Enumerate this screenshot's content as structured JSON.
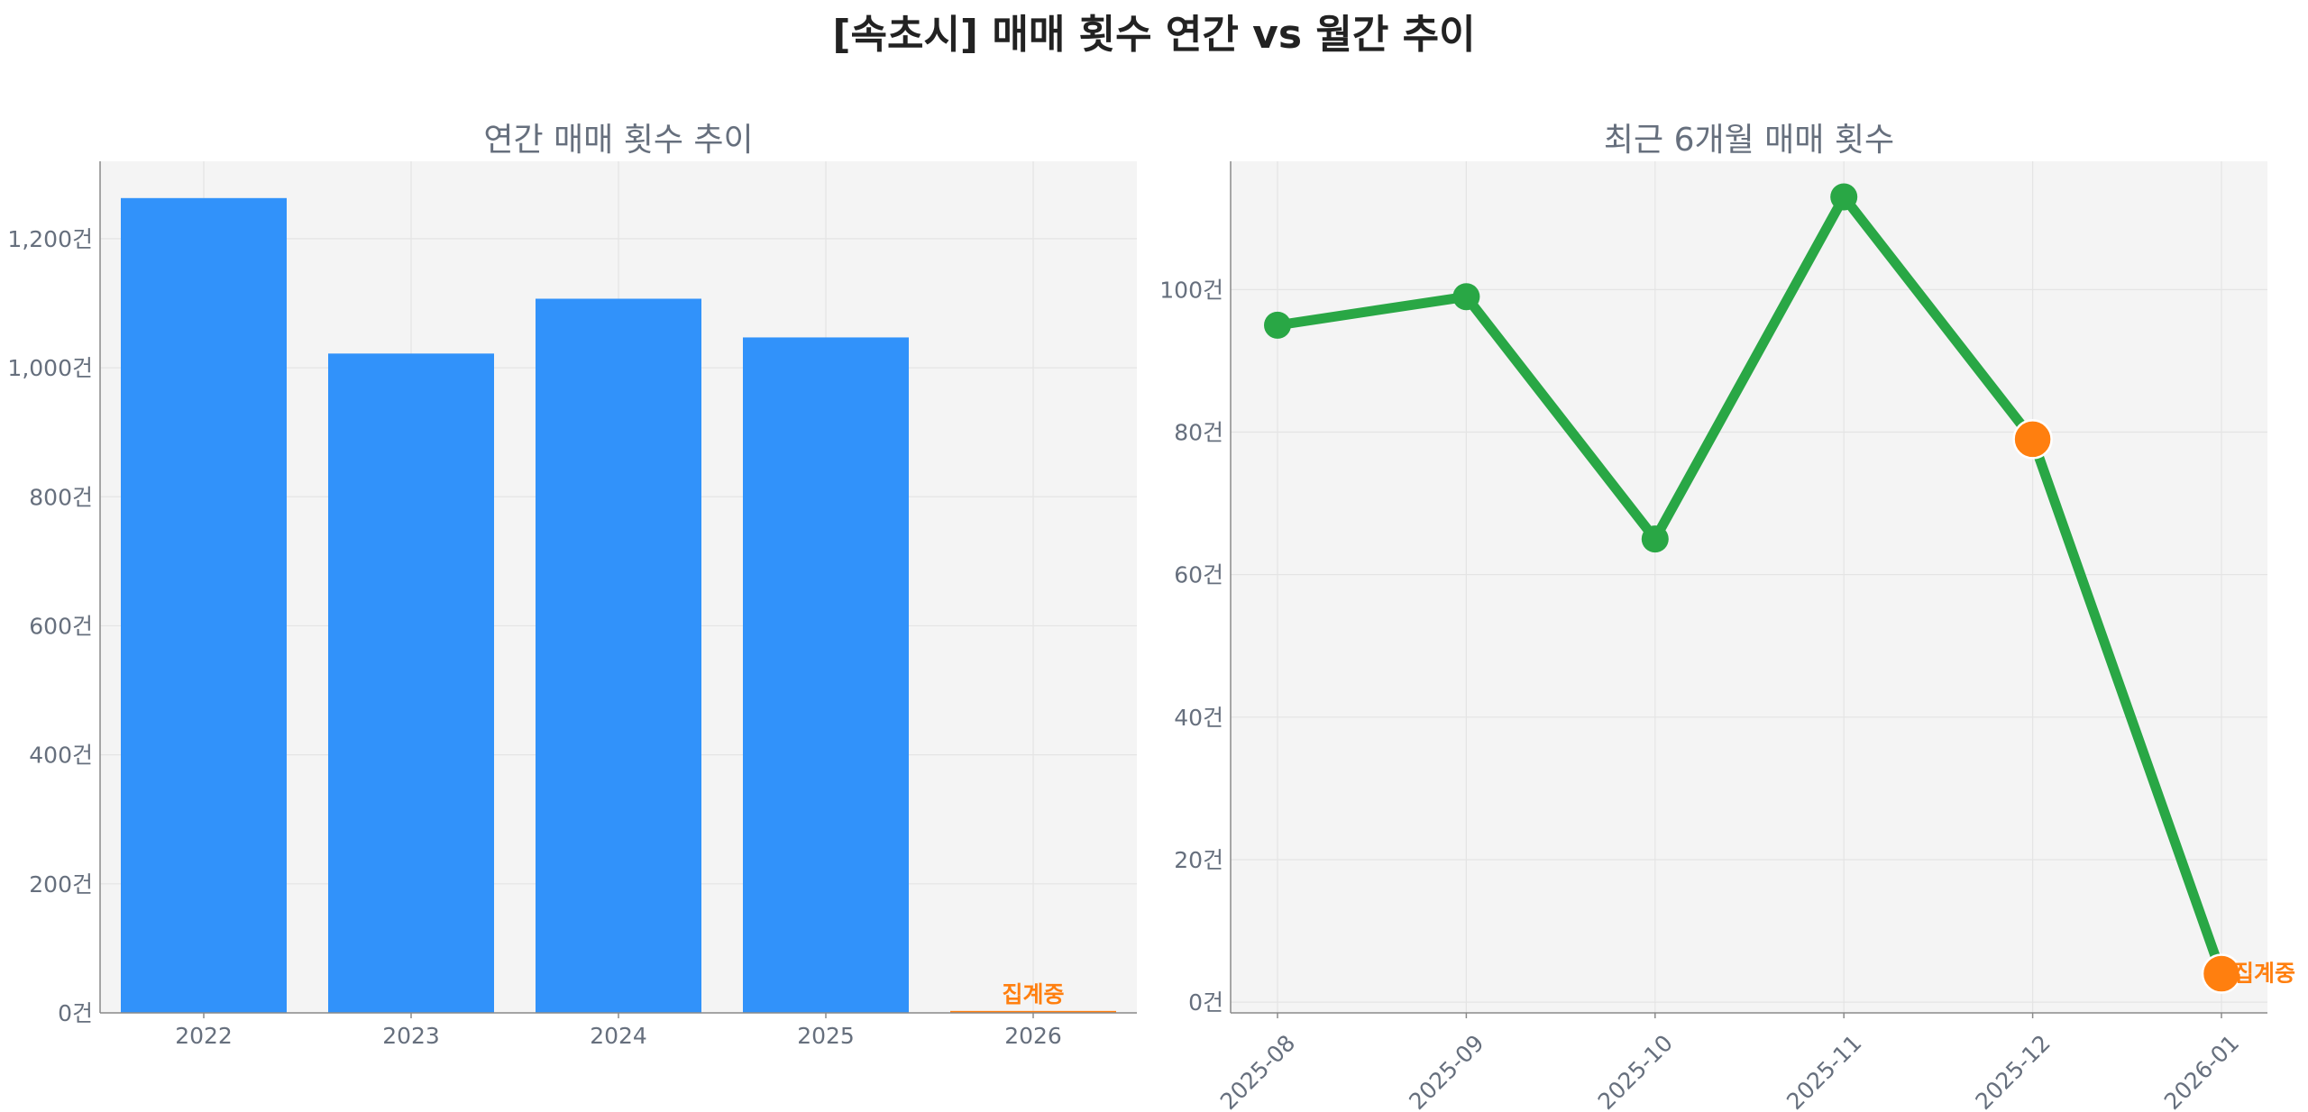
{
  "figure": {
    "title": "[속초시] 매매 횟수 연간 vs 월간 추이"
  },
  "colors": {
    "bar": "#3192fa",
    "line": "#29a745",
    "highlight": "#ff7f0f",
    "axis_text": "#666f7d",
    "plot_bg": "#f4f4f4",
    "grid": "#e4e4e4"
  },
  "chart_data": [
    {
      "type": "bar",
      "title": "연간 매매 횟수 추이",
      "categories": [
        "2022",
        "2023",
        "2024",
        "2025",
        "2026"
      ],
      "values": [
        1263,
        1022,
        1107,
        1047,
        3
      ],
      "ylim": [
        0,
        1320
      ],
      "yticks": [
        0,
        200,
        400,
        600,
        800,
        1000,
        1200
      ],
      "ytick_labels": [
        "0건",
        "200건",
        "400건",
        "600건",
        "800건",
        "1,000건",
        "1,200건"
      ],
      "grid": true,
      "highlight_index": 4,
      "annotation": {
        "category": "2026",
        "text": "집계중"
      }
    },
    {
      "type": "line",
      "title": "최근 6개월 매매 횟수",
      "x": [
        "2025-08",
        "2025-09",
        "2025-10",
        "2025-11",
        "2025-12",
        "2026-01"
      ],
      "values": [
        95,
        99,
        65,
        113,
        79,
        4
      ],
      "ylim": [
        -1.5,
        118
      ],
      "yticks": [
        0,
        20,
        40,
        60,
        80,
        100
      ],
      "ytick_labels": [
        "0건",
        "20건",
        "40건",
        "60건",
        "80건",
        "100건"
      ],
      "grid": true,
      "highlight_indices": [
        4,
        5
      ],
      "annotation": {
        "x": "2026-01",
        "text": "집계중"
      }
    }
  ]
}
